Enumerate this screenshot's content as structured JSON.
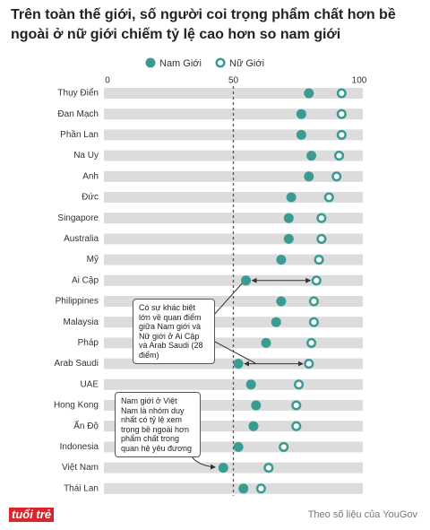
{
  "chart_data": {
    "type": "dot",
    "title": "Trên toàn thế giới, số người coi trọng phẩm chất hơn bề ngoài ở nữ giới chiếm tỷ lệ cao hơn so nam giới",
    "categories": [
      "Thụy Điển",
      "Đan Mạch",
      "Phần Lan",
      "Na Uy",
      "Anh",
      "Đức",
      "Singapore",
      "Australia",
      "Mỹ",
      "Ai Cập",
      "Philippines",
      "Malaysia",
      "Pháp",
      "Arab Saudi",
      "UAE",
      "Hong Kong",
      "Ấn Độ",
      "Indonesia",
      "Việt Nam",
      "Thái Lan"
    ],
    "series": [
      {
        "name": "Nam Giới",
        "color": "#3a9b93",
        "hollow": false,
        "values": [
          80,
          77,
          77,
          81,
          80,
          73,
          72,
          72,
          69,
          55,
          69,
          67,
          63,
          52,
          57,
          59,
          58,
          52,
          46,
          54
        ]
      },
      {
        "name": "Nữ Giới",
        "color": "#3a9b93",
        "hollow": true,
        "values": [
          93,
          93,
          93,
          92,
          91,
          88,
          85,
          85,
          84,
          83,
          82,
          82,
          81,
          80,
          76,
          75,
          75,
          70,
          64,
          61
        ]
      }
    ],
    "xlim": [
      0,
      100
    ],
    "xticks": [
      0,
      50,
      100
    ],
    "reference_line": 50,
    "annotations": [
      "Có sự khác biệt lớn về quan điểm giữa Nam giới và Nữ giới ở Ai Cập và Arab Saudi (28 điểm)",
      "Nam giới ở Việt Nam là nhóm duy nhất có tỷ lệ xem trọng bề ngoài hơn phẩm chất trong quan hệ yêu đương"
    ],
    "logo": "tuổi trẻ",
    "source": "Theo số liệu của YouGov"
  }
}
